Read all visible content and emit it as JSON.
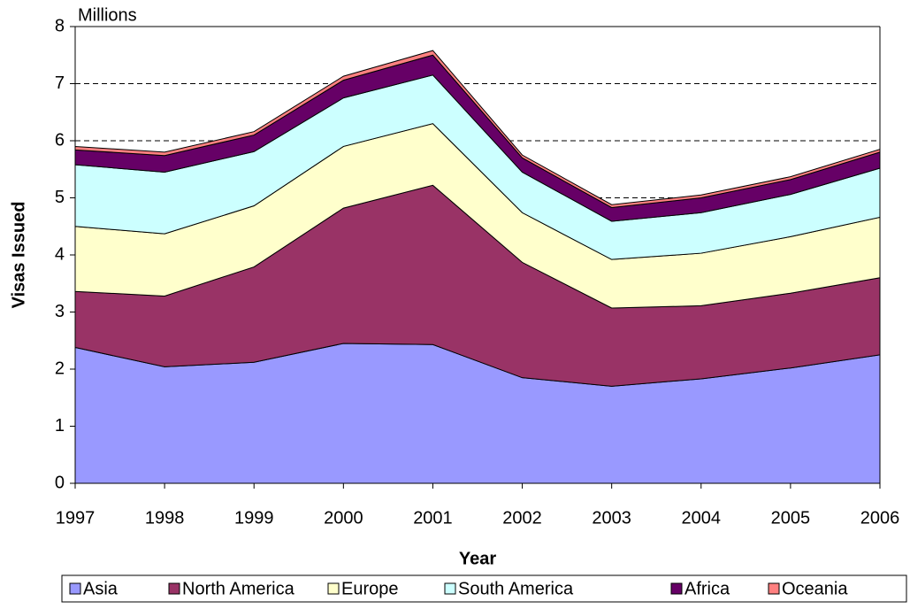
{
  "chart_data": {
    "type": "stacked-area",
    "unit_label": "Millions",
    "y_label": "Visas Issued",
    "x_label": "Year",
    "categories": [
      "1997",
      "1998",
      "1999",
      "2000",
      "2001",
      "2002",
      "2003",
      "2004",
      "2005",
      "2006"
    ],
    "series": [
      {
        "name": "Asia",
        "color": "#9999ff",
        "values": [
          2.38,
          2.04,
          2.12,
          2.45,
          2.43,
          1.85,
          1.7,
          1.83,
          2.02,
          2.25
        ]
      },
      {
        "name": "North America",
        "color": "#993366",
        "values": [
          0.98,
          1.24,
          1.67,
          2.37,
          2.79,
          2.02,
          1.37,
          1.28,
          1.31,
          1.35
        ]
      },
      {
        "name": "Europe",
        "color": "#ffffcc",
        "values": [
          1.14,
          1.09,
          1.07,
          1.08,
          1.08,
          0.87,
          0.85,
          0.92,
          0.99,
          1.06
        ]
      },
      {
        "name": "South America",
        "color": "#ccffff",
        "values": [
          1.08,
          1.08,
          0.95,
          0.85,
          0.85,
          0.71,
          0.67,
          0.71,
          0.74,
          0.86
        ]
      },
      {
        "name": "Africa",
        "color": "#660066",
        "values": [
          0.26,
          0.29,
          0.29,
          0.31,
          0.35,
          0.25,
          0.24,
          0.26,
          0.26,
          0.28
        ]
      },
      {
        "name": "Oceania",
        "color": "#ff8080",
        "values": [
          0.06,
          0.06,
          0.06,
          0.07,
          0.08,
          0.05,
          0.05,
          0.05,
          0.05,
          0.05
        ]
      }
    ],
    "ylim": [
      0,
      8
    ],
    "yticks": [
      0,
      1,
      2,
      3,
      4,
      5,
      6,
      7,
      8
    ],
    "grid": true,
    "legend": "bottom"
  }
}
